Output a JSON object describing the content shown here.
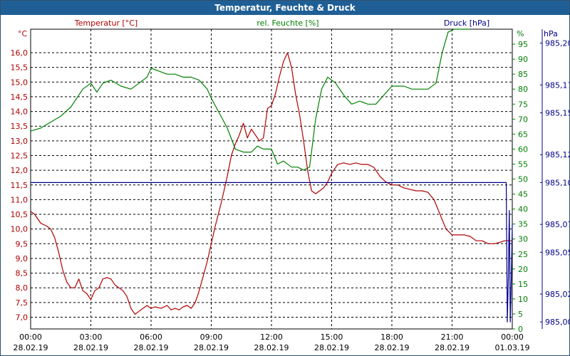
{
  "window": {
    "title": "Temperatur, Feuchte & Druck"
  },
  "chart_data": {
    "type": "line",
    "title": "Temperatur, Feuchte & Druck",
    "grid": true,
    "colors": {
      "temperature": "#b00000",
      "humidity": "#008000",
      "pressure": "#00008b",
      "grid": "#000000"
    },
    "x_axis": {
      "ticks": [
        {
          "time": "00:00",
          "date": "28.02.19"
        },
        {
          "time": "03:00",
          "date": "28.02.19"
        },
        {
          "time": "06:00",
          "date": "28.02.19"
        },
        {
          "time": "09:00",
          "date": "28.02.19"
        },
        {
          "time": "12:00",
          "date": "28.02.19"
        },
        {
          "time": "15:00",
          "date": "28.02.19"
        },
        {
          "time": "18:00",
          "date": "28.02.19"
        },
        {
          "time": "21:00",
          "date": "28.02.19"
        },
        {
          "time": "00:00",
          "date": "01.03.19"
        }
      ]
    },
    "axes": {
      "temperature": {
        "unit": "°C",
        "range": [
          6.6,
          16.8
        ],
        "ticks": [
          "16,0",
          "15,5",
          "15,0",
          "14,5",
          "14,0",
          "13,5",
          "13,0",
          "12,5",
          "12,0",
          "11,5",
          "11,0",
          "10,5",
          "10,0",
          "9,5",
          "9,0",
          "8,5",
          "8,0",
          "7,5",
          "7,0"
        ]
      },
      "humidity": {
        "unit": "%",
        "range": [
          0,
          100
        ],
        "ticks": [
          "95",
          "90",
          "85",
          "80",
          "75",
          "70",
          "65",
          "60",
          "55",
          "50",
          "45",
          "40",
          "35",
          "30",
          "25",
          "20",
          "15",
          "10",
          "5",
          "0"
        ]
      },
      "pressure": {
        "unit": "hPa",
        "range": [
          984.995,
          985.21
        ],
        "ticks": [
          "985,20",
          "985,17",
          "985,15",
          "985,12",
          "985,10",
          "985,07",
          "985,05",
          "985,02",
          "985,00"
        ]
      }
    },
    "series": [
      {
        "name": "Temperatur [°C]",
        "axis": "temperature",
        "x_hours": [
          0,
          0.2,
          0.5,
          0.8,
          1.0,
          1.2,
          1.4,
          1.6,
          1.8,
          2.0,
          2.2,
          2.4,
          2.6,
          2.8,
          3.0,
          3.2,
          3.4,
          3.6,
          3.8,
          4.0,
          4.2,
          4.4,
          4.6,
          4.8,
          5.0,
          5.2,
          5.4,
          5.6,
          5.8,
          6.0,
          6.2,
          6.5,
          6.8,
          7.0,
          7.2,
          7.4,
          7.6,
          7.8,
          8.0,
          8.2,
          8.4,
          8.6,
          8.8,
          9.0,
          9.2,
          9.5,
          9.8,
          10.0,
          10.2,
          10.4,
          10.6,
          10.8,
          11.0,
          11.2,
          11.4,
          11.6,
          11.8,
          12.0,
          12.2,
          12.4,
          12.6,
          12.8,
          13.0,
          13.2,
          13.4,
          13.6,
          13.8,
          14.0,
          14.2,
          14.4,
          14.6,
          14.8,
          15.0,
          15.3,
          15.6,
          15.9,
          16.2,
          16.5,
          16.8,
          17.1,
          17.4,
          17.7,
          18.0,
          18.3,
          18.6,
          18.9,
          19.2,
          19.5,
          19.8,
          20.1,
          20.4,
          20.7,
          21.0,
          21.3,
          21.6,
          21.9,
          22.2,
          22.5,
          22.8,
          23.1,
          23.4,
          23.6,
          23.8,
          24.0
        ],
        "values": [
          10.6,
          10.5,
          10.2,
          10.1,
          10.0,
          9.7,
          9.2,
          8.6,
          8.2,
          8.0,
          8.0,
          8.3,
          7.9,
          7.8,
          7.6,
          7.9,
          8.0,
          8.3,
          8.35,
          8.3,
          8.1,
          8.0,
          7.9,
          7.7,
          7.3,
          7.1,
          7.2,
          7.3,
          7.4,
          7.3,
          7.35,
          7.3,
          7.4,
          7.25,
          7.3,
          7.25,
          7.35,
          7.4,
          7.3,
          7.5,
          7.9,
          8.4,
          8.9,
          9.5,
          10.1,
          10.9,
          11.8,
          12.5,
          12.9,
          13.2,
          13.6,
          13.1,
          13.4,
          13.2,
          13.0,
          13.1,
          14.1,
          14.2,
          14.6,
          15.2,
          15.7,
          16.0,
          15.5,
          14.6,
          13.9,
          13.0,
          12.0,
          11.3,
          11.2,
          11.3,
          11.4,
          11.6,
          11.9,
          12.2,
          12.25,
          12.2,
          12.25,
          12.2,
          12.2,
          12.1,
          11.8,
          11.6,
          11.5,
          11.5,
          11.4,
          11.35,
          11.3,
          11.3,
          11.25,
          11.0,
          10.5,
          10.0,
          9.8,
          9.8,
          9.8,
          9.75,
          9.6,
          9.6,
          9.5,
          9.5,
          9.55,
          9.6,
          9.6,
          9.6
        ]
      },
      {
        "name": "rel. Feuchte [%]",
        "axis": "humidity",
        "x_hours": [
          0,
          0.5,
          1.0,
          1.5,
          2.0,
          2.3,
          2.6,
          3.0,
          3.3,
          3.6,
          4.0,
          4.5,
          5.0,
          5.4,
          5.8,
          6.0,
          6.4,
          6.8,
          7.2,
          7.6,
          8.0,
          8.4,
          8.8,
          9.0,
          9.4,
          9.8,
          10.2,
          10.6,
          11.0,
          11.3,
          11.6,
          12.0,
          12.3,
          12.6,
          13.0,
          13.3,
          13.6,
          13.9,
          14.2,
          14.5,
          14.8,
          15.2,
          15.6,
          16.0,
          16.4,
          16.8,
          17.2,
          17.6,
          18.0,
          18.3,
          18.6,
          19.0,
          19.4,
          19.8,
          20.2,
          20.5,
          20.8,
          21.1,
          21.4,
          21.7,
          21.9
        ],
        "values": [
          66,
          67,
          69,
          71,
          74,
          77,
          80,
          82,
          79,
          82,
          83,
          81,
          80,
          82,
          84,
          87,
          86,
          85,
          85,
          84,
          84,
          83,
          80,
          77,
          72,
          67,
          60,
          59,
          59,
          61,
          60,
          60,
          55,
          56,
          54,
          54,
          53,
          54,
          70,
          80,
          84,
          82,
          78,
          75,
          76,
          75,
          75,
          78,
          81,
          81,
          81,
          80,
          80,
          80,
          82,
          92,
          99,
          100,
          100,
          100,
          100
        ]
      },
      {
        "name": "Druck [hPa]",
        "axis": "pressure",
        "x_hours": [
          0,
          23.7,
          23.75,
          23.8,
          23.85,
          23.9,
          23.95,
          24.0
        ],
        "values": [
          985.1,
          985.1,
          985.0,
          985.03,
          985.08,
          985.0,
          985.03,
          985.07
        ]
      }
    ]
  }
}
